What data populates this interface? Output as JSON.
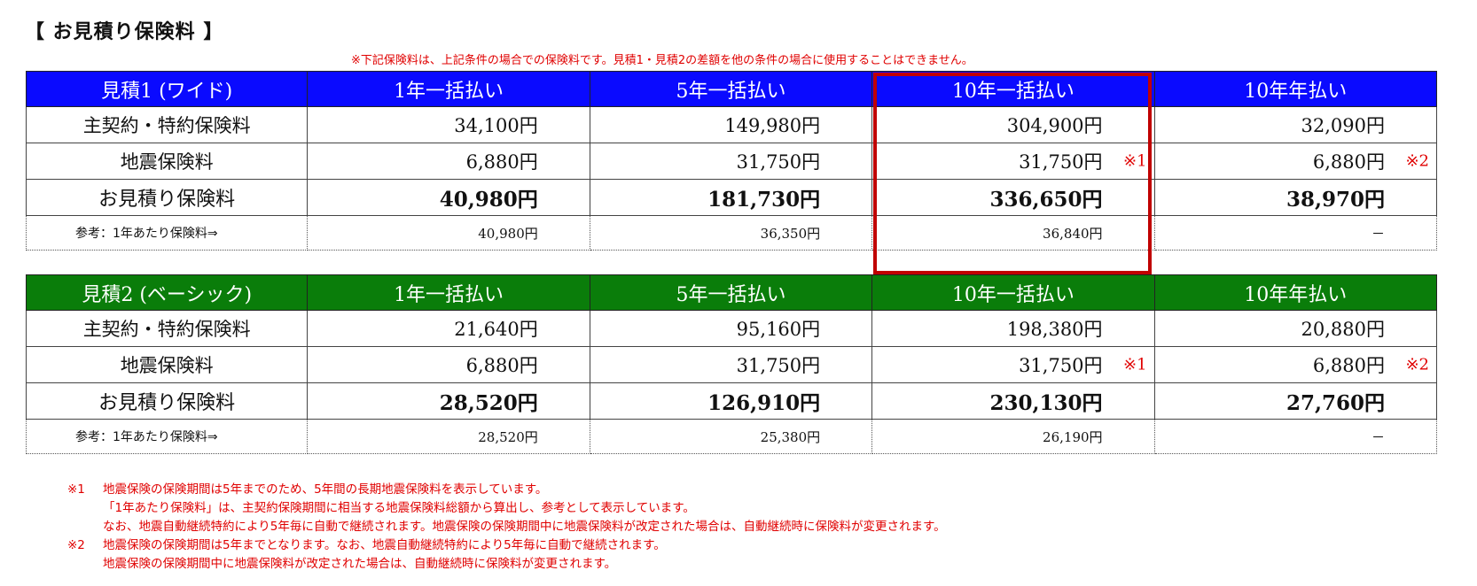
{
  "title": "【 お見積り保険料 】",
  "notice": "※下記保険料は、上記条件の場合での保険料です。見積1・見積2の差額を他の条件の場合に使用することはできません。",
  "colors": {
    "quote1_header": "#0a0aff",
    "quote2_header": "#0a7d0a",
    "highlight": "#c00000",
    "note_text": "#e00000"
  },
  "quote1": {
    "header": [
      "見積1 (ワイド)",
      "1年一括払い",
      "5年一括払い",
      "10年一括払い",
      "10年年払い"
    ],
    "main_label": "主契約・特約保険料",
    "main": [
      "34,100円",
      "149,980円",
      "304,900円",
      "32,090円"
    ],
    "quake_label": "地震保険料",
    "quake": [
      "6,880円",
      "31,750円",
      "31,750円",
      "6,880円"
    ],
    "quake_marks": [
      "",
      "",
      "※1",
      "※2"
    ],
    "total_label": "お見積り保険料",
    "total": [
      "40,980円",
      "181,730円",
      "336,650円",
      "38,970円"
    ],
    "ref_label": "参考：1年あたり保険料⇒",
    "ref": [
      "40,980円",
      "36,350円",
      "36,840円",
      "－"
    ]
  },
  "quote2": {
    "header": [
      "見積2 (ベーシック)",
      "1年一括払い",
      "5年一括払い",
      "10年一括払い",
      "10年年払い"
    ],
    "main_label": "主契約・特約保険料",
    "main": [
      "21,640円",
      "95,160円",
      "198,380円",
      "20,880円"
    ],
    "quake_label": "地震保険料",
    "quake": [
      "6,880円",
      "31,750円",
      "31,750円",
      "6,880円"
    ],
    "quake_marks": [
      "",
      "",
      "※1",
      "※2"
    ],
    "total_label": "お見積り保険料",
    "total": [
      "28,520円",
      "126,910円",
      "230,130円",
      "27,760円"
    ],
    "ref_label": "参考：1年あたり保険料⇒",
    "ref": [
      "28,520円",
      "25,380円",
      "26,190円",
      "－"
    ]
  },
  "notes": [
    {
      "mark": "※1",
      "text": "地震保険の保険期間は5年までのため、5年間の長期地震保険料を表示しています。"
    },
    {
      "mark": "",
      "text": "「1年あたり保険料」は、主契約保険期間に相当する地震保険料総額から算出し、参考として表示しています。"
    },
    {
      "mark": "",
      "text": "なお、地震自動継続特約により5年毎に自動で継続されます。地震保険の保険期間中に地震保険料が改定された場合は、自動継続時に保険料が変更されます。"
    },
    {
      "mark": "※2",
      "text": "地震保険の保険期間は5年までとなります。なお、地震自動継続特約により5年毎に自動で継続されます。"
    },
    {
      "mark": "",
      "text": "地震保険の保険期間中に地震保険料が改定された場合は、自動継続時に保険料が変更されます。"
    }
  ]
}
